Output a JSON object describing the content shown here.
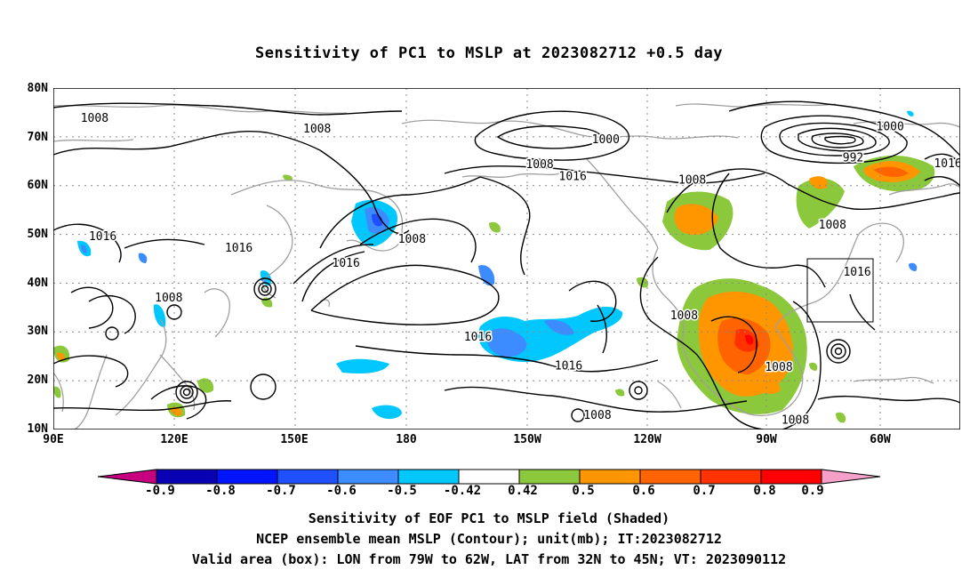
{
  "title": "Sensitivity of PC1 to MSLP at 2023082712 +0.5 day",
  "lat_labels": [
    "80N",
    "70N",
    "60N",
    "50N",
    "40N",
    "30N",
    "20N",
    "10N"
  ],
  "lon_labels": [
    "90E",
    "120E",
    "150E",
    "180",
    "150W",
    "120W",
    "90W",
    "60W"
  ],
  "colorbar": {
    "labels": [
      "-0.9",
      "-0.8",
      "-0.7",
      "-0.6",
      "-0.5",
      "-0.42",
      "0.42",
      "0.5",
      "0.6",
      "0.7",
      "0.8",
      "0.9"
    ],
    "colors": [
      "#c6007f",
      "#0a00b4",
      "#0014ff",
      "#1e50ff",
      "#3c8cff",
      "#00c8ff",
      "#ffffff",
      "#8cc83c",
      "#ff9600",
      "#ff6400",
      "#ff3200",
      "#ff0000",
      "#f5a0c8"
    ]
  },
  "contour_labels": [
    {
      "text": "1008",
      "lon": 100,
      "lat": 73.7
    },
    {
      "text": "1008",
      "lon": 154,
      "lat": 71.5
    },
    {
      "text": "1000",
      "lon": -136,
      "lat": 69.3
    },
    {
      "text": "1008",
      "lon": -152,
      "lat": 64.2
    },
    {
      "text": "1016",
      "lon": -144,
      "lat": 61.8
    },
    {
      "text": "1008",
      "lon": -115,
      "lat": 61.0
    },
    {
      "text": "1000",
      "lon": -67,
      "lat": 72.0
    },
    {
      "text": "992",
      "lon": -76,
      "lat": 65.6
    },
    {
      "text": "1016",
      "lon": -53,
      "lat": 64.4
    },
    {
      "text": "1008",
      "lon": -81,
      "lat": 51.8
    },
    {
      "text": "1016",
      "lon": 102,
      "lat": 49.5
    },
    {
      "text": "1016",
      "lon": 135,
      "lat": 47.1
    },
    {
      "text": "1016",
      "lon": 161,
      "lat": 44.0
    },
    {
      "text": "1008",
      "lon": 177,
      "lat": 48.9
    },
    {
      "text": "1016",
      "lon": -75,
      "lat": 42.2
    },
    {
      "text": "1008",
      "lon": 118,
      "lat": 36.9
    },
    {
      "text": "1008",
      "lon": -117,
      "lat": 33.2
    },
    {
      "text": "1016",
      "lon": -167,
      "lat": 28.9
    },
    {
      "text": "1016",
      "lon": -145,
      "lat": 22.9
    },
    {
      "text": "1008",
      "lon": -94,
      "lat": 22.7
    },
    {
      "text": "1008",
      "lon": -138,
      "lat": 12.8
    },
    {
      "text": "1008",
      "lon": -90,
      "lat": 11.8
    }
  ],
  "captions": [
    "Sensitivity of EOF PC1 to MSLP field (Shaded)",
    "NCEP ensemble mean MSLP (Contour); unit(mb); IT:2023082712",
    "Valid area (box): LON from 79W to 62W, LAT from 32N to 45N; VT: 2023090112"
  ]
}
